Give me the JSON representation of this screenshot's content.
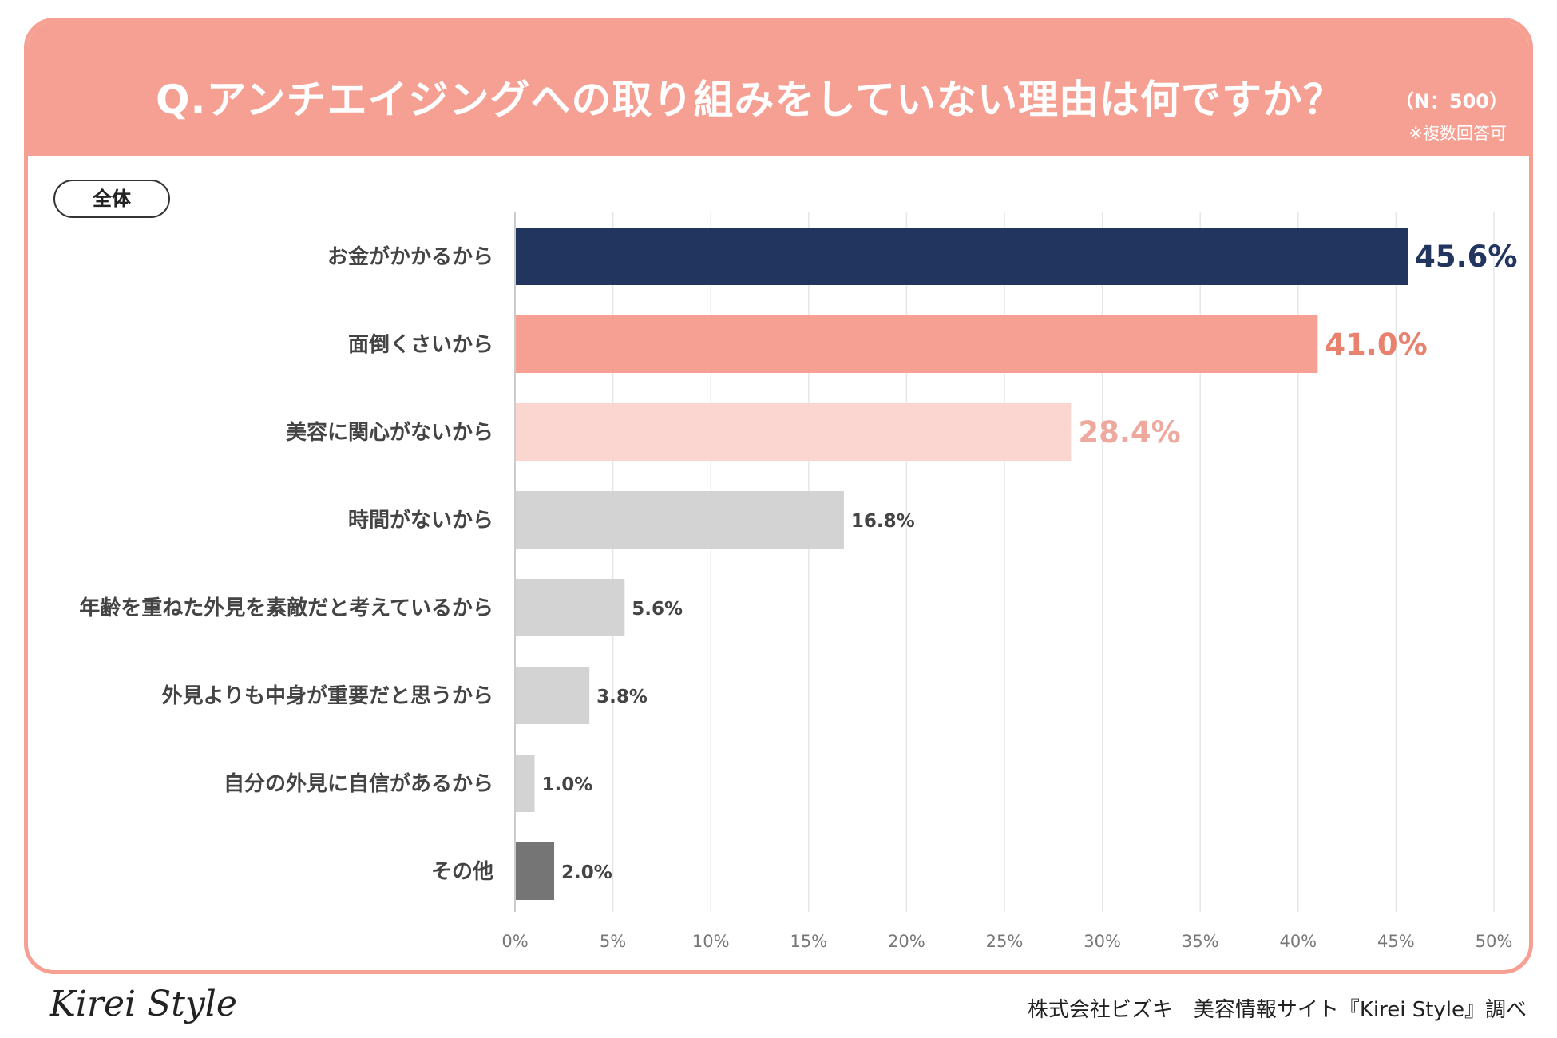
{
  "header": {
    "title": "Q.アンチエイジングへの取り組みをしていない理由は何ですか？",
    "sample": "（N：500）",
    "note": "※複数回答可"
  },
  "filter_label": "全体",
  "footer": {
    "logo": "Kirei Style",
    "credit": "株式会社ビズキ　美容情報サイト『Kirei Style』調べ"
  },
  "colors": {
    "navy": "#22355e",
    "salmon": "#f5a093",
    "pink": "#fbd5cf",
    "light_gray": "#d3d3d3",
    "dark_gray": "#757575",
    "label_text": "#444444"
  },
  "chart_data": {
    "type": "bar",
    "orientation": "horizontal",
    "title": "Q.アンチエイジングへの取り組みをしていない理由は何ですか？",
    "categories": [
      "お金がかかるから",
      "面倒くさいから",
      "美容に関心がないから",
      "時間がないから",
      "年齢を重ねた外見を素敵だと考えているから",
      "外見よりも中身が重要だと思うから",
      "自分の外見に自信があるから",
      "その他"
    ],
    "values": [
      45.6,
      41.0,
      28.4,
      16.8,
      5.6,
      3.8,
      1.0,
      2.0
    ],
    "value_labels": [
      "45.6%",
      "41.0%",
      "28.4%",
      "16.8%",
      "5.6%",
      "3.8%",
      "1.0%",
      "2.0%"
    ],
    "bar_colors": [
      "#22355e",
      "#f5a093",
      "#fbd5cf",
      "#d3d3d3",
      "#d3d3d3",
      "#d3d3d3",
      "#d3d3d3",
      "#757575"
    ],
    "label_colors": [
      "#22355e",
      "#e8826f",
      "#eea99e",
      "#444444",
      "#444444",
      "#444444",
      "#444444",
      "#444444"
    ],
    "label_emphasis": [
      "large",
      "large",
      "large",
      "normal",
      "normal",
      "normal",
      "normal",
      "normal"
    ],
    "xlim": [
      0,
      50
    ],
    "xticks": [
      0,
      5,
      10,
      15,
      20,
      25,
      30,
      35,
      40,
      45,
      50
    ],
    "xtick_labels": [
      "0%",
      "5%",
      "10%",
      "15%",
      "20%",
      "25%",
      "30%",
      "35%",
      "40%",
      "45%",
      "50%"
    ],
    "grid": true,
    "xlabel": "",
    "ylabel": ""
  }
}
